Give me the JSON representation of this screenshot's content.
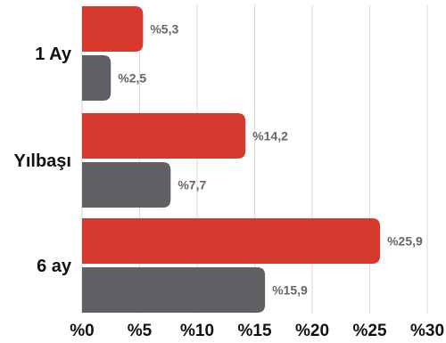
{
  "chart_data": {
    "type": "bar",
    "orientation": "horizontal",
    "categories": [
      "1 Ay",
      "Yılbaşı",
      "6 ay"
    ],
    "series": [
      {
        "values": [
          5.3,
          14.2,
          25.9
        ],
        "labels": [
          "%5,3",
          "%14,2",
          "%25,9"
        ],
        "color": "#d63a2e"
      },
      {
        "values": [
          2.5,
          7.7,
          15.9
        ],
        "labels": [
          "%2,5",
          "%7,7",
          "%15,9"
        ],
        "color": "#5f6063"
      }
    ],
    "x_ticks": [
      0,
      5,
      10,
      15,
      20,
      25,
      30
    ],
    "x_tick_labels": [
      "%0",
      "%5",
      "%10",
      "%15",
      "%20",
      "%25",
      "%30"
    ],
    "xlim": [
      0,
      30
    ],
    "grid": true,
    "legend": "none",
    "title": "",
    "xlabel": "",
    "ylabel": ""
  }
}
